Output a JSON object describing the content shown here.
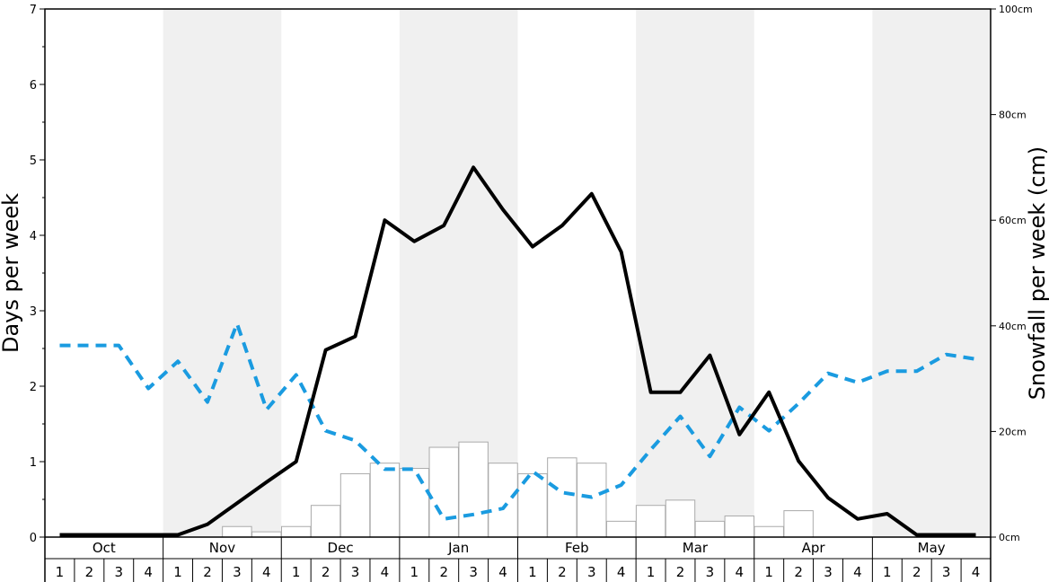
{
  "chart_data": {
    "type": "bar",
    "ylabel_left": "Days per week",
    "ylabel_right": "Snowfall per week (cm)",
    "ylim_left": [
      0,
      7
    ],
    "ylim_right": [
      0,
      100
    ],
    "left_ticks": [
      "0",
      "1",
      "2",
      "3",
      "4",
      "5",
      "6",
      "7"
    ],
    "right_ticks": [
      "0cm",
      "20cm",
      "40cm",
      "60cm",
      "80cm",
      "100cm"
    ],
    "months": [
      "Oct",
      "Nov",
      "Dec",
      "Jan",
      "Feb",
      "Mar",
      "Apr",
      "May"
    ],
    "weeks": [
      "1",
      "2",
      "3",
      "4"
    ],
    "shaded_months": [
      "Nov",
      "Jan",
      "Mar",
      "May"
    ],
    "legend": "none",
    "grid": false,
    "colors": {
      "bars_fill": "#ffffff",
      "bars_stroke": "#aaaaaa",
      "days_line": "#000000",
      "dashed_line": "#1a9be0",
      "band": "#f0f0f0"
    },
    "series": [
      {
        "kind": "bar",
        "axis": "right",
        "values": [
          0,
          0,
          0,
          0,
          0,
          0,
          2,
          1,
          2,
          6,
          12,
          14,
          13,
          17,
          18,
          14,
          12,
          15,
          14,
          3,
          6,
          7,
          3,
          4,
          2,
          5,
          0,
          0,
          0,
          0,
          0,
          0
        ]
      },
      {
        "kind": "line",
        "axis": "left",
        "values": [
          0.03,
          0.03,
          0.03,
          0.03,
          0.03,
          0.17,
          0.45,
          0.73,
          1.0,
          2.48,
          2.66,
          4.2,
          3.92,
          4.13,
          4.9,
          4.34,
          3.85,
          4.13,
          4.55,
          3.78,
          1.92,
          1.92,
          2.41,
          1.36,
          1.92,
          1.01,
          0.52,
          0.24,
          0.31,
          0.03,
          0.03,
          0.03
        ]
      },
      {
        "kind": "dashed-line",
        "axis": "left",
        "values": [
          2.54,
          2.54,
          2.54,
          1.97,
          2.33,
          1.79,
          2.83,
          1.69,
          2.15,
          1.41,
          1.28,
          0.9,
          0.9,
          0.24,
          0.3,
          0.38,
          0.87,
          0.59,
          0.53,
          0.69,
          1.16,
          1.6,
          1.07,
          1.72,
          1.41,
          1.77,
          2.17,
          2.05,
          2.2,
          2.2,
          2.42,
          2.36
        ]
      }
    ]
  }
}
